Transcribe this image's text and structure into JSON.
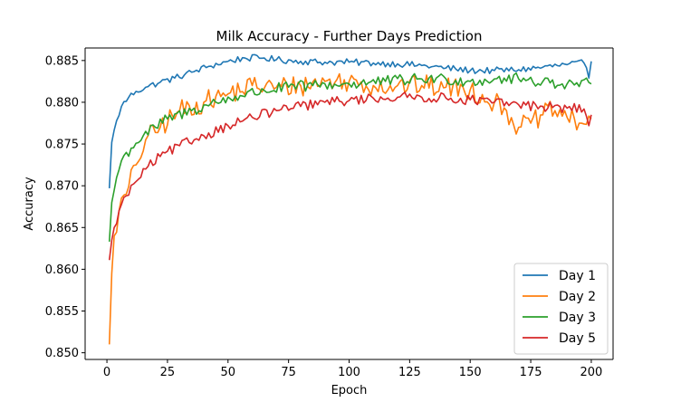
{
  "chart_data": {
    "type": "line",
    "title": "Milk Accuracy - Further Days Prediction",
    "xlabel": "Epoch",
    "ylabel": "Accuracy",
    "xlim": [
      -9,
      209
    ],
    "ylim": [
      0.8492,
      0.8865
    ],
    "xticks": [
      0,
      25,
      50,
      75,
      100,
      125,
      150,
      175,
      200
    ],
    "yticks": [
      0.85,
      0.855,
      0.86,
      0.865,
      0.87,
      0.875,
      0.88,
      0.885
    ],
    "ytick_labels": [
      "0.850",
      "0.855",
      "0.860",
      "0.865",
      "0.870",
      "0.875",
      "0.880",
      "0.885"
    ],
    "grid": false,
    "legend_position": "lower-right",
    "series": [
      {
        "name": "Day 1",
        "color": "#1f77b4",
        "anchors": [
          [
            1,
            0.8697
          ],
          [
            2,
            0.8752
          ],
          [
            4,
            0.8778
          ],
          [
            6,
            0.8795
          ],
          [
            9,
            0.8806
          ],
          [
            12,
            0.8813
          ],
          [
            16,
            0.8818
          ],
          [
            22,
            0.8824
          ],
          [
            28,
            0.8829
          ],
          [
            35,
            0.8836
          ],
          [
            42,
            0.8843
          ],
          [
            50,
            0.8849
          ],
          [
            57,
            0.8853
          ],
          [
            65,
            0.8853
          ],
          [
            70,
            0.8851
          ],
          [
            80,
            0.8849
          ],
          [
            90,
            0.8848
          ],
          [
            100,
            0.8848
          ],
          [
            110,
            0.8847
          ],
          [
            120,
            0.8846
          ],
          [
            130,
            0.8844
          ],
          [
            140,
            0.8841
          ],
          [
            150,
            0.8838
          ],
          [
            160,
            0.8838
          ],
          [
            170,
            0.8839
          ],
          [
            180,
            0.8842
          ],
          [
            190,
            0.8845
          ],
          [
            197,
            0.8847
          ],
          [
            199,
            0.8829
          ],
          [
            200,
            0.8849
          ]
        ],
        "noise": 0.0004
      },
      {
        "name": "Day 2",
        "color": "#ff7f0e",
        "anchors": [
          [
            1,
            0.851
          ],
          [
            2,
            0.8595
          ],
          [
            3,
            0.864
          ],
          [
            5,
            0.867
          ],
          [
            8,
            0.869
          ],
          [
            12,
            0.8725
          ],
          [
            16,
            0.8755
          ],
          [
            22,
            0.877
          ],
          [
            30,
            0.879
          ],
          [
            40,
            0.88
          ],
          [
            50,
            0.881
          ],
          [
            60,
            0.882
          ],
          [
            70,
            0.8818
          ],
          [
            80,
            0.882
          ],
          [
            90,
            0.8825
          ],
          [
            100,
            0.8825
          ],
          [
            110,
            0.882
          ],
          [
            120,
            0.882
          ],
          [
            130,
            0.882
          ],
          [
            140,
            0.8818
          ],
          [
            150,
            0.8815
          ],
          [
            160,
            0.88
          ],
          [
            165,
            0.879
          ],
          [
            170,
            0.877
          ],
          [
            175,
            0.8775
          ],
          [
            180,
            0.8785
          ],
          [
            185,
            0.879
          ],
          [
            190,
            0.8782
          ],
          [
            195,
            0.8775
          ],
          [
            200,
            0.878
          ]
        ],
        "noise": 0.0013
      },
      {
        "name": "Day 3",
        "color": "#2ca02c",
        "anchors": [
          [
            1,
            0.8633
          ],
          [
            2,
            0.868
          ],
          [
            4,
            0.871
          ],
          [
            6,
            0.873
          ],
          [
            10,
            0.8745
          ],
          [
            15,
            0.876
          ],
          [
            20,
            0.877
          ],
          [
            25,
            0.878
          ],
          [
            35,
            0.879
          ],
          [
            45,
            0.88
          ],
          [
            55,
            0.8808
          ],
          [
            65,
            0.8814
          ],
          [
            75,
            0.8818
          ],
          [
            85,
            0.882
          ],
          [
            100,
            0.8822
          ],
          [
            115,
            0.8825
          ],
          [
            130,
            0.8828
          ],
          [
            140,
            0.8828
          ],
          [
            150,
            0.8825
          ],
          [
            160,
            0.8828
          ],
          [
            170,
            0.8828
          ],
          [
            180,
            0.8825
          ],
          [
            190,
            0.8822
          ],
          [
            200,
            0.8822
          ]
        ],
        "noise": 0.0007
      },
      {
        "name": "Day 5",
        "color": "#d62728",
        "anchors": [
          [
            1,
            0.8611
          ],
          [
            3,
            0.865
          ],
          [
            5,
            0.867
          ],
          [
            8,
            0.8688
          ],
          [
            12,
            0.8705
          ],
          [
            16,
            0.872
          ],
          [
            22,
            0.8735
          ],
          [
            30,
            0.8748
          ],
          [
            40,
            0.876
          ],
          [
            50,
            0.8772
          ],
          [
            60,
            0.8782
          ],
          [
            70,
            0.879
          ],
          [
            80,
            0.8795
          ],
          [
            90,
            0.88
          ],
          [
            100,
            0.8802
          ],
          [
            110,
            0.8805
          ],
          [
            120,
            0.8806
          ],
          [
            130,
            0.8806
          ],
          [
            140,
            0.8805
          ],
          [
            150,
            0.8803
          ],
          [
            160,
            0.88
          ],
          [
            170,
            0.8797
          ],
          [
            180,
            0.8795
          ],
          [
            190,
            0.8793
          ],
          [
            197,
            0.8792
          ],
          [
            199,
            0.8772
          ],
          [
            200,
            0.8785
          ]
        ],
        "noise": 0.0006
      }
    ]
  }
}
